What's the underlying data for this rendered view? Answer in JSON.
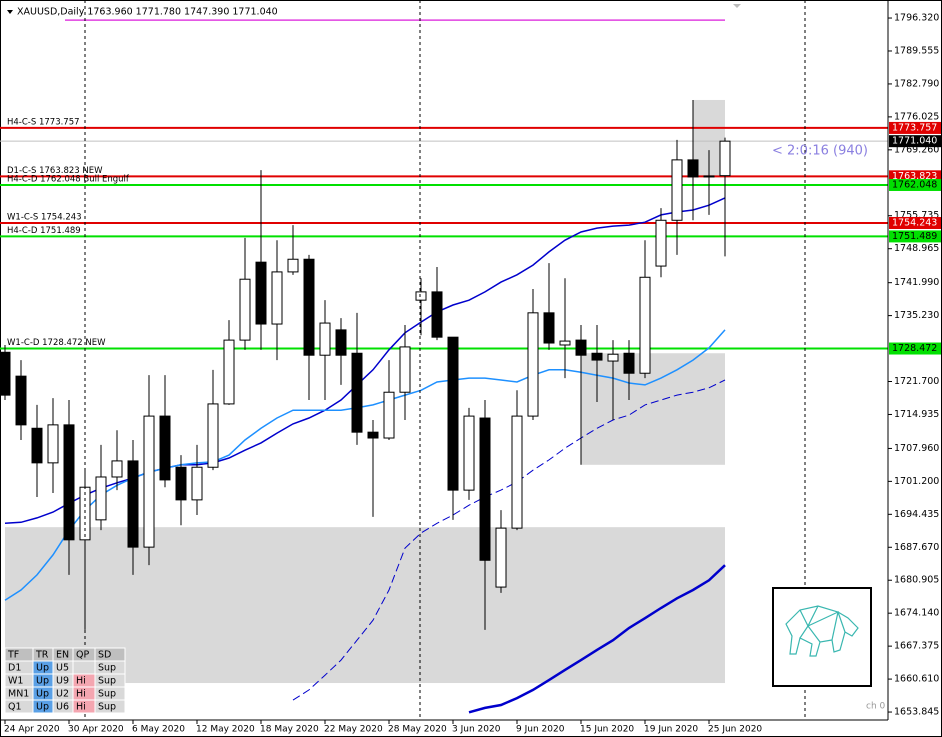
{
  "chart_data": {
    "type": "candlestick",
    "title": "XAUUSD,Daily  1763.960 1771.780 1747.390 1771.040",
    "categories": [
      "24 Apr 2020",
      null,
      null,
      null,
      "30 Apr 2020",
      null,
      null,
      null,
      "6 May 2020",
      null,
      null,
      null,
      "12 May 2020",
      null,
      null,
      null,
      "18 May 2020",
      null,
      null,
      null,
      "22 May 2020",
      null,
      null,
      null,
      "28 May 2020",
      null,
      null,
      null,
      "3 Jun 2020",
      null,
      null,
      null,
      "9 Jun 2020",
      null,
      null,
      null,
      "15 Jun 2020",
      null,
      null,
      null,
      "19 Jun 2020",
      null,
      null,
      null,
      "25 Jun 2020",
      null
    ],
    "open": [
      1727.7,
      1722.8,
      1712.1,
      1705.0,
      1712.8,
      1689.2,
      1693.3,
      1702.1,
      1705.4,
      1687.7,
      1714.6,
      1704.1,
      1697.4,
      1704.1,
      1717.1,
      1730.2,
      1746.2,
      1733.5,
      1744.2,
      1746.8,
      1727.1,
      1732.3,
      1727.5,
      1711.3,
      1710.1,
      1719.5,
      1738.4,
      1740.1,
      1730.8,
      1699.4,
      1714.2,
      1679.5,
      1691.6,
      1714.6,
      1735.8,
      1729.2,
      1730.2,
      1727.5,
      1725.9,
      1727.5,
      1723.4,
      1745.4,
      1754.8,
      1767.2,
      1763.7,
      1763.96
    ],
    "high": [
      1729.2,
      1726.1,
      1716.9,
      1718.3,
      1717.9,
      1703.5,
      1708.7,
      1711.7,
      1709.7,
      1723.0,
      1723.0,
      1706.6,
      1708.7,
      1724.1,
      1734.3,
      1751.2,
      1765.1,
      1750.7,
      1753.8,
      1747.7,
      1738.4,
      1734.7,
      1735.8,
      1713.8,
      1726.1,
      1733.3,
      1742.9,
      1745.2,
      1730.8,
      1716.3,
      1717.9,
      1695.3,
      1719.9,
      1740.7,
      1746.0,
      1742.9,
      1733.3,
      1733.3,
      1730.2,
      1730.2,
      1750.7,
      1757.3,
      1771.3,
      1779.5,
      1769.2,
      1771.78
    ],
    "low": [
      1717.9,
      1709.7,
      1698.0,
      1698.8,
      1682.0,
      1670.7,
      1691.2,
      1699.4,
      1682.0,
      1684.0,
      1700.0,
      1692.2,
      1694.3,
      1703.5,
      1716.9,
      1728.2,
      1728.2,
      1726.1,
      1743.6,
      1717.9,
      1717.9,
      1721.0,
      1708.7,
      1693.9,
      1709.7,
      1713.8,
      1731.2,
      1730.2,
      1693.3,
      1697.4,
      1670.7,
      1678.3,
      1691.2,
      1713.8,
      1728.2,
      1722.4,
      1704.6,
      1717.5,
      1713.8,
      1717.9,
      1722.4,
      1743.1,
      1747.7,
      1754.8,
      1755.9,
      1747.39
    ],
    "close": [
      1718.9,
      1712.8,
      1705.0,
      1712.8,
      1689.2,
      1700.0,
      1702.1,
      1705.4,
      1687.7,
      1714.6,
      1701.5,
      1697.4,
      1704.1,
      1717.1,
      1730.2,
      1742.7,
      1733.5,
      1744.2,
      1746.8,
      1727.1,
      1733.7,
      1727.1,
      1711.3,
      1710.1,
      1719.5,
      1728.8,
      1740.1,
      1730.8,
      1699.4,
      1714.6,
      1685.0,
      1691.6,
      1714.6,
      1735.8,
      1729.6,
      1730.0,
      1727.1,
      1726.1,
      1727.3,
      1723.4,
      1743.1,
      1754.8,
      1767.2,
      1763.7,
      1763.9,
      1771.04
    ],
    "lines": [
      {
        "color": "#0000cc",
        "width": 1.5,
        "dashed": false,
        "values": [
          1692.6,
          1692.8,
          1693.7,
          1694.9,
          1696.7,
          1698.4,
          1699.8,
          1700.9,
          1701.9,
          1703.1,
          1703.9,
          1704.6,
          1704.6,
          1705.0,
          1706.0,
          1707.6,
          1709.1,
          1711.1,
          1713.0,
          1714.2,
          1715.8,
          1717.9,
          1721.0,
          1724.1,
          1728.2,
          1731.7,
          1733.9,
          1736.0,
          1737.4,
          1738.4,
          1740.1,
          1742.1,
          1743.6,
          1745.6,
          1748.3,
          1750.7,
          1752.4,
          1753.2,
          1753.6,
          1753.8,
          1754.4,
          1755.9,
          1756.5,
          1756.9,
          1757.9,
          1759.4
        ]
      },
      {
        "color": "#1e90ff",
        "width": 1.5,
        "dashed": false,
        "values": [
          1676.8,
          1678.9,
          1682.0,
          1686.1,
          1691.2,
          1695.3,
          1698.4,
          1700.4,
          1701.9,
          1703.1,
          1703.9,
          1704.6,
          1705.0,
          1705.2,
          1706.6,
          1709.7,
          1712.1,
          1714.2,
          1715.8,
          1715.8,
          1715.8,
          1715.8,
          1716.3,
          1716.9,
          1717.9,
          1718.9,
          1719.9,
          1721.6,
          1722.0,
          1722.4,
          1722.4,
          1722.0,
          1721.6,
          1723.0,
          1724.1,
          1724.1,
          1723.6,
          1723.0,
          1722.4,
          1721.4,
          1721.0,
          1722.4,
          1724.1,
          1726.1,
          1728.6,
          1732.3
        ]
      },
      {
        "color": "#0000cc",
        "width": 1,
        "dashed": true,
        "values": [
          null,
          null,
          null,
          null,
          null,
          null,
          null,
          null,
          null,
          null,
          null,
          null,
          null,
          null,
          null,
          null,
          null,
          null,
          1656.3,
          1658.4,
          1661.4,
          1664.5,
          1668.6,
          1672.7,
          1678.9,
          1687.5,
          1690.6,
          1692.6,
          1694.3,
          1696.3,
          1698.0,
          1699.4,
          1701.1,
          1703.5,
          1705.6,
          1708.0,
          1710.1,
          1712.1,
          1713.8,
          1714.8,
          1716.9,
          1717.9,
          1718.9,
          1719.5,
          1720.4,
          1722.0
        ]
      },
      {
        "color": "#0000cc",
        "width": 2.5,
        "dashed": false,
        "values": [
          null,
          null,
          null,
          null,
          null,
          null,
          null,
          null,
          null,
          null,
          null,
          null,
          null,
          null,
          null,
          null,
          null,
          null,
          null,
          null,
          null,
          null,
          null,
          null,
          null,
          null,
          null,
          null,
          null,
          1653.8,
          1654.7,
          1655.3,
          1656.7,
          1658.4,
          1660.4,
          1662.5,
          1664.5,
          1666.6,
          1668.6,
          1671.1,
          1673.1,
          1675.2,
          1677.2,
          1678.9,
          1680.9,
          1684.0
        ]
      }
    ],
    "zones": [
      {
        "top": 1691.8,
        "bottom": 1659.8,
        "start": 0,
        "end": 45
      },
      {
        "top": 1727.5,
        "bottom": 1704.6,
        "start": 36,
        "end": 45
      },
      {
        "top": 1779.5,
        "bottom": 1763.9,
        "start": 43,
        "end": 45
      }
    ],
    "levels": [
      {
        "label": "H4-C-S 1773.757",
        "value": 1773.757,
        "color": "#e00000"
      },
      {
        "value": 1771.04,
        "value_label": "1771.040",
        "color": "#c0c0c0"
      },
      {
        "label": "D1-C-S 1763.823 NEW",
        "value": 1763.823,
        "color": "#e00000"
      },
      {
        "label": "H4-C-D 1762.048 Bull Engulf",
        "value": 1762.048,
        "color": "#00e000"
      },
      {
        "label": "W1-C-S 1754.243",
        "value": 1754.243,
        "color": "#e00000"
      },
      {
        "label": "H4-C-D 1751.489",
        "value": 1751.489,
        "color": "#00e000"
      },
      {
        "label": "W1-C-D 1728.472 NEW",
        "value": 1728.472,
        "color": "#00e000"
      }
    ],
    "marker_line": {
      "value": 1795.9,
      "color": "#e040e0"
    },
    "countdown": "< 2:0:16 (940)",
    "corner_note": "ch 0",
    "ylim": [
      1651.8,
      1799.2
    ],
    "yticks": [
      {
        "value": 1796.32,
        "label": "1796.320"
      },
      {
        "value": 1789.555,
        "label": "1789.555"
      },
      {
        "value": 1782.79,
        "label": "1782.790"
      },
      {
        "value": 1776.025,
        "label": "1776.025"
      },
      {
        "value": 1769.26,
        "label": "1769.260"
      },
      {
        "value": 1755.735,
        "label": "1755.735"
      },
      {
        "value": 1748.965,
        "label": "1748.965"
      },
      {
        "value": 1741.99,
        "label": "1741.990"
      },
      {
        "value": 1735.23,
        "label": "1735.230"
      },
      {
        "value": 1721.7,
        "label": "1721.700"
      },
      {
        "value": 1714.935,
        "label": "1714.935"
      },
      {
        "value": 1707.96,
        "label": "1707.960"
      },
      {
        "value": 1701.2,
        "label": "1701.200"
      },
      {
        "value": 1694.435,
        "label": "1694.435"
      },
      {
        "value": 1687.67,
        "label": "1687.670"
      },
      {
        "value": 1680.905,
        "label": "1680.905"
      },
      {
        "value": 1674.14,
        "label": "1674.140"
      },
      {
        "value": 1667.375,
        "label": "1667.375"
      },
      {
        "value": 1660.61,
        "label": "1660.610"
      },
      {
        "value": 1653.845,
        "label": "1653.845"
      }
    ]
  },
  "table": {
    "columns": [
      "TF",
      "TR",
      "EN",
      "QP",
      "SD"
    ],
    "rows": [
      [
        "D1",
        "Up",
        "U5",
        null,
        "Sup"
      ],
      [
        "W1",
        "Up",
        "U9",
        "Hi",
        "Sup"
      ],
      [
        "MN1",
        "Up",
        "U2",
        "Hi",
        "Sup"
      ],
      [
        "Q1",
        "Up",
        "U6",
        "Hi",
        "Sup"
      ]
    ]
  }
}
